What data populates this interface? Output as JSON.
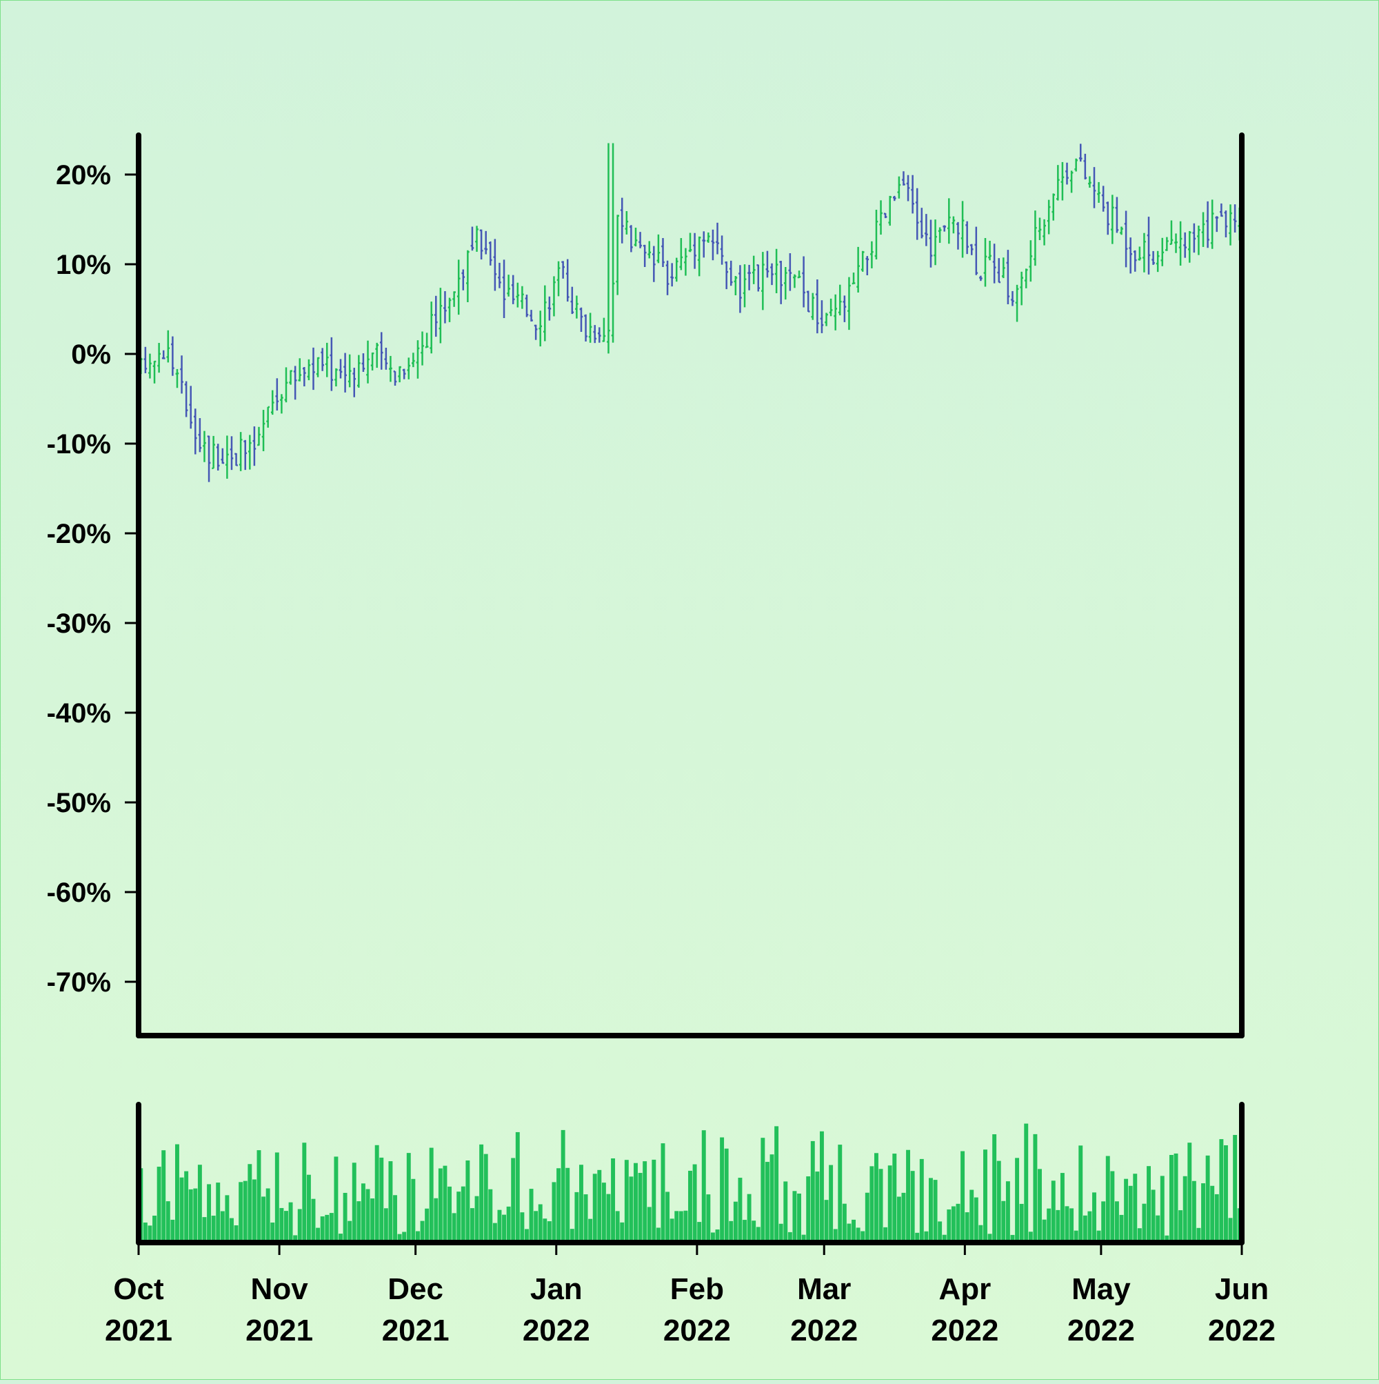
{
  "colors": {
    "up": "#1fbe55",
    "down": "#4557b5",
    "volume": "#22c05a",
    "axis": "#000000"
  },
  "chart_data": {
    "type": "ohlc",
    "title": "",
    "xlabel": "",
    "ylabel": "",
    "x_range": [
      "2021-10-01",
      "2022-06-01"
    ],
    "ylim": [
      -76,
      24
    ],
    "y_ticks": [
      20,
      10,
      0,
      -10,
      -20,
      -30,
      -40,
      -50,
      -60,
      -70
    ],
    "y_tick_labels": [
      "20%",
      "10%",
      "0%",
      "-10%",
      "-20%",
      "-30%",
      "-40%",
      "-50%",
      "-60%",
      "-70%"
    ],
    "x_ticks": [
      {
        "date": "2021-10-01",
        "month": "Oct",
        "year": "2021"
      },
      {
        "date": "2021-11-01",
        "month": "Nov",
        "year": "2021"
      },
      {
        "date": "2021-12-01",
        "month": "Dec",
        "year": "2021"
      },
      {
        "date": "2022-01-01",
        "month": "Jan",
        "year": "2022"
      },
      {
        "date": "2022-02-01",
        "month": "Feb",
        "year": "2022"
      },
      {
        "date": "2022-03-01",
        "month": "Mar",
        "year": "2022"
      },
      {
        "date": "2022-04-01",
        "month": "Apr",
        "year": "2022"
      },
      {
        "date": "2022-05-01",
        "month": "May",
        "year": "2022"
      },
      {
        "date": "2022-06-01",
        "month": "Jun",
        "year": "2022"
      }
    ],
    "grid": false,
    "price_anchors": [
      {
        "date": "2021-10-01",
        "close": -2
      },
      {
        "date": "2021-10-07",
        "close": 1
      },
      {
        "date": "2021-10-11",
        "close": -5
      },
      {
        "date": "2021-10-16",
        "close": -11
      },
      {
        "date": "2021-10-26",
        "close": -11
      },
      {
        "date": "2021-11-01",
        "close": -4
      },
      {
        "date": "2021-11-08",
        "close": -1
      },
      {
        "date": "2021-11-15",
        "close": -2
      },
      {
        "date": "2021-11-22",
        "close": 0
      },
      {
        "date": "2021-11-26",
        "close": -2
      },
      {
        "date": "2021-12-01",
        "close": 0
      },
      {
        "date": "2021-12-08",
        "close": 6
      },
      {
        "date": "2021-12-15",
        "close": 13
      },
      {
        "date": "2021-12-20",
        "close": 7
      },
      {
        "date": "2021-12-28",
        "close": 4
      },
      {
        "date": "2022-01-02",
        "close": 9
      },
      {
        "date": "2022-01-07",
        "close": 3
      },
      {
        "date": "2022-01-13",
        "close": 3
      },
      {
        "date": "2022-01-14",
        "close": 15
      },
      {
        "date": "2022-01-20",
        "close": 11
      },
      {
        "date": "2022-01-26",
        "close": 9
      },
      {
        "date": "2022-02-03",
        "close": 14
      },
      {
        "date": "2022-02-10",
        "close": 7
      },
      {
        "date": "2022-02-17",
        "close": 9
      },
      {
        "date": "2022-02-23",
        "close": 8
      },
      {
        "date": "2022-03-01",
        "close": 3
      },
      {
        "date": "2022-03-06",
        "close": 6
      },
      {
        "date": "2022-03-12",
        "close": 13
      },
      {
        "date": "2022-03-18",
        "close": 19
      },
      {
        "date": "2022-03-24",
        "close": 12
      },
      {
        "date": "2022-03-30",
        "close": 15
      },
      {
        "date": "2022-04-04",
        "close": 10
      },
      {
        "date": "2022-04-09",
        "close": 9
      },
      {
        "date": "2022-04-12",
        "close": 6
      },
      {
        "date": "2022-04-20",
        "close": 18
      },
      {
        "date": "2022-04-25",
        "close": 22
      },
      {
        "date": "2022-05-02",
        "close": 16
      },
      {
        "date": "2022-05-08",
        "close": 12
      },
      {
        "date": "2022-05-15",
        "close": 11
      },
      {
        "date": "2022-05-22",
        "close": 13
      },
      {
        "date": "2022-05-31",
        "close": 16
      }
    ],
    "volume_level": 0.45
  }
}
